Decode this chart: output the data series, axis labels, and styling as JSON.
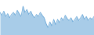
{
  "values": [
    55,
    48,
    58,
    45,
    52,
    42,
    50,
    55,
    48,
    60,
    52,
    45,
    70,
    55,
    62,
    50,
    58,
    48,
    42,
    50,
    45,
    55,
    48,
    42,
    28,
    18,
    32,
    22,
    38,
    25,
    38,
    30,
    42,
    35,
    48,
    40,
    35,
    42,
    32,
    38,
    45,
    35,
    42,
    50,
    38,
    45,
    35,
    42,
    38,
    45
  ],
  "line_color": "#5b9fd4",
  "fill_color": "#a8cce8",
  "background_color": "#ffffff",
  "ylim_min": 0,
  "ylim_max": 85
}
